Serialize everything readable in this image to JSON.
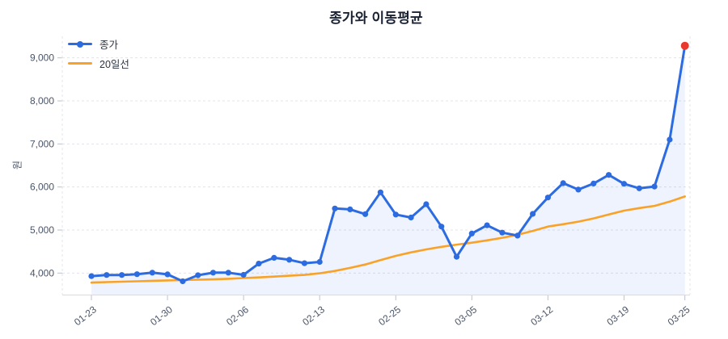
{
  "title": "종가와 이동평균",
  "y_axis_title": "원",
  "legend": {
    "position": "top-left",
    "items": [
      {
        "label": "종가",
        "color": "#2C6BE0",
        "marker": "line-dot"
      },
      {
        "label": "20일선",
        "color": "#F9A227",
        "marker": "line"
      }
    ]
  },
  "style": {
    "background": "#FFFFFF",
    "grid_color": "#E2E4EB",
    "axis_color": "#D7DAE2",
    "tick_color": "#BDC2CE",
    "label_color": "#4A5568",
    "title_color": "#1B2333",
    "close_color": "#2C6BE0",
    "ma_color": "#F9A227",
    "final_point_color": "#E8392E",
    "area_fill": "rgba(44,107,224,0.08)"
  },
  "chart_data": {
    "type": "line",
    "title": "종가와 이동평균",
    "xlabel": "",
    "ylabel": "원",
    "ylim": [
      3500,
      9500
    ],
    "grid": "horizontal-dashed",
    "legend_position": "top-left",
    "y_ticks": [
      4000,
      5000,
      6000,
      7000,
      8000,
      9000
    ],
    "y_tick_labels": [
      "4,000",
      "5,000",
      "6,000",
      "7,000",
      "8,000",
      "9,000"
    ],
    "x": [
      "01-23",
      "01-26",
      "01-27",
      "01-28",
      "01-29",
      "01-30",
      "02-02",
      "02-03",
      "02-04",
      "02-05",
      "02-06",
      "02-09",
      "02-10",
      "02-11",
      "02-12",
      "02-13",
      "02-19",
      "02-20",
      "02-23",
      "02-24",
      "02-25",
      "02-26",
      "02-27",
      "03-03",
      "03-04",
      "03-05",
      "03-06",
      "03-09",
      "03-10",
      "03-11",
      "03-12",
      "03-13",
      "03-16",
      "03-17",
      "03-18",
      "03-19",
      "03-20",
      "03-23",
      "03-24",
      "03-25"
    ],
    "x_tick_indices": [
      0,
      5,
      10,
      15,
      20,
      25,
      30,
      35,
      39
    ],
    "x_tick_labels": [
      "01-23",
      "01-30",
      "02-06",
      "02-13",
      "02-25",
      "03-05",
      "03-12",
      "03-19",
      "03-25"
    ],
    "series": [
      {
        "name": "종가",
        "type": "line",
        "marker": "circle",
        "color": "#2C6BE0",
        "fill": "rgba(44,107,224,0.08)",
        "last_marker_color": "#E8392E",
        "values": [
          3930,
          3955,
          3955,
          3975,
          4010,
          3970,
          3810,
          3950,
          4010,
          4010,
          3960,
          4220,
          4355,
          4310,
          4230,
          4260,
          5500,
          5480,
          5370,
          5875,
          5360,
          5290,
          5600,
          5080,
          4380,
          4920,
          5110,
          4940,
          4870,
          5375,
          5755,
          6090,
          5940,
          6080,
          6280,
          6075,
          5970,
          6010,
          7100,
          9280
        ]
      },
      {
        "name": "20일선",
        "type": "line",
        "marker": "none",
        "color": "#F9A227",
        "values": [
          3780,
          3790,
          3800,
          3810,
          3820,
          3830,
          3838,
          3846,
          3855,
          3868,
          3885,
          3900,
          3918,
          3938,
          3958,
          3995,
          4050,
          4120,
          4200,
          4300,
          4400,
          4480,
          4550,
          4610,
          4660,
          4705,
          4760,
          4820,
          4890,
          4980,
          5080,
          5135,
          5195,
          5270,
          5360,
          5450,
          5510,
          5560,
          5660,
          5780
        ]
      }
    ]
  }
}
